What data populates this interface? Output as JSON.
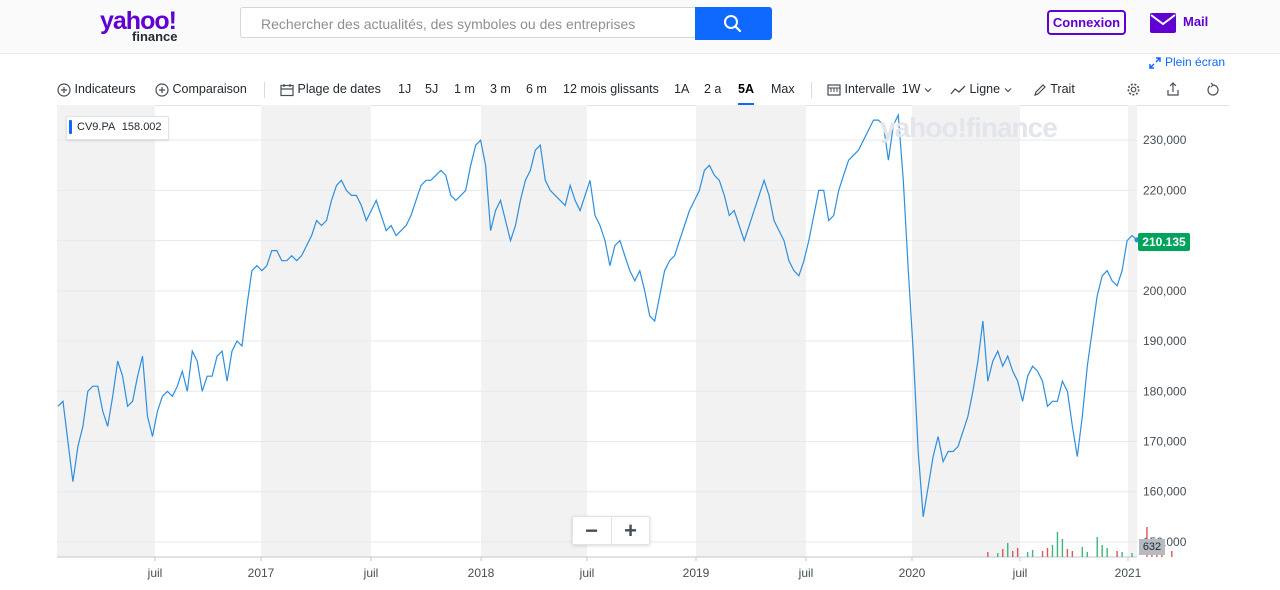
{
  "header": {
    "logo_text": "yahoo!",
    "logo_sub": "finance",
    "search_placeholder": "Rechercher des actualités, des symboles ou des entreprises",
    "connexion_label": "Connexion",
    "mail_label": "Mail"
  },
  "fullscreen_label": "Plein écran",
  "toolbar": {
    "indicateurs": "Indicateurs",
    "comparaison": "Comparaison",
    "plage": "Plage de dates",
    "ranges": [
      "1J",
      "5J",
      "1 m",
      "3 m",
      "6 m",
      "12 mois glissants",
      "1A",
      "2 a",
      "5A",
      "Max"
    ],
    "active_range": "5A",
    "intervalle": "Intervalle",
    "intervalle_value": "1W",
    "ligne": "Ligne",
    "trait": "Trait"
  },
  "legend": {
    "symbol": "CV9.PA",
    "value": "158.002"
  },
  "watermark": "yahoo!finance",
  "zoom": {
    "minus": "−",
    "plus": "+"
  },
  "price_tag": "210.135",
  "volume_tag": "632",
  "colors": {
    "line": "#2d8fdd",
    "accent": "#0f69ff",
    "brand": "#6001d2",
    "price_tag": "#00a35c",
    "band": "#f2f2f2"
  },
  "chart_data": {
    "type": "line",
    "series": [
      {
        "name": "CV9.PA",
        "values": [
          177,
          178,
          170,
          162,
          169,
          173,
          180,
          181,
          181,
          176,
          173,
          179,
          186,
          183,
          177,
          178,
          183,
          187,
          175,
          171,
          176,
          179,
          180,
          179,
          181,
          184,
          180,
          188,
          186,
          180,
          183,
          183,
          187,
          188,
          182,
          188,
          190,
          189,
          197,
          204,
          205,
          204,
          205,
          208,
          208,
          206,
          206,
          207,
          206,
          207,
          209,
          211,
          214,
          213,
          214,
          218,
          221,
          222,
          220,
          219,
          219,
          217,
          214,
          216,
          218,
          215,
          212,
          213,
          211,
          212,
          213,
          215,
          218,
          221,
          222,
          222,
          223,
          224,
          223,
          219,
          218,
          219,
          220,
          225,
          229,
          230,
          225,
          212,
          216,
          218,
          214,
          210,
          213,
          218,
          222,
          224,
          228,
          229,
          222,
          220,
          219,
          218,
          217,
          221,
          218,
          216,
          219,
          222,
          215,
          213,
          210,
          205,
          209,
          210,
          207,
          204,
          202,
          204,
          200,
          195,
          194,
          199,
          204,
          206,
          207,
          210,
          213,
          216,
          218,
          220,
          224,
          225,
          223,
          222,
          219,
          215,
          216,
          213,
          210,
          213,
          216,
          219,
          222,
          219,
          214,
          212,
          210,
          206,
          204,
          203,
          206,
          210,
          215,
          220,
          220,
          214,
          215,
          220,
          223,
          226,
          227,
          228,
          230,
          232,
          234,
          234,
          233,
          226,
          233,
          235,
          222,
          204,
          188,
          168,
          155,
          161,
          167,
          171,
          166,
          168,
          168,
          169,
          172,
          175,
          180,
          186,
          194,
          182,
          186,
          188,
          185,
          187,
          184,
          182,
          178,
          183,
          185,
          184,
          182,
          177,
          178,
          178,
          182,
          180,
          173,
          167,
          175,
          185,
          192,
          199,
          203,
          204,
          202,
          201,
          204,
          210,
          211,
          210.135
        ]
      }
    ],
    "x_tick_labels": [
      "juil",
      "2017",
      "juil",
      "2018",
      "juil",
      "2019",
      "juil",
      "2020",
      "juil",
      "2021"
    ],
    "y_tick_labels": [
      "150,000",
      "160,000",
      "170,000",
      "180,000",
      "190,000",
      "200,000",
      "210,000",
      "220,000",
      "230,000"
    ],
    "ylim": [
      147,
      237
    ],
    "grid": true,
    "volume": [
      {
        "i": 187,
        "v": 5
      },
      {
        "i": 189,
        "v": 4
      },
      {
        "i": 190,
        "v": 8
      },
      {
        "i": 191,
        "v": 14
      },
      {
        "i": 192,
        "v": 6
      },
      {
        "i": 193,
        "v": 9
      },
      {
        "i": 195,
        "v": 5
      },
      {
        "i": 196,
        "v": 7
      },
      {
        "i": 198,
        "v": 6
      },
      {
        "i": 199,
        "v": 9
      },
      {
        "i": 200,
        "v": 12
      },
      {
        "i": 201,
        "v": 25
      },
      {
        "i": 202,
        "v": 18
      },
      {
        "i": 203,
        "v": 8
      },
      {
        "i": 204,
        "v": 6
      },
      {
        "i": 206,
        "v": 10
      },
      {
        "i": 207,
        "v": 5
      },
      {
        "i": 209,
        "v": 20
      },
      {
        "i": 210,
        "v": 12
      },
      {
        "i": 211,
        "v": 9
      },
      {
        "i": 213,
        "v": 6
      },
      {
        "i": 214,
        "v": 5
      },
      {
        "i": 216,
        "v": 4
      },
      {
        "i": 219,
        "v": 30
      },
      {
        "i": 220,
        "v": 8
      },
      {
        "i": 221,
        "v": 5
      },
      {
        "i": 222,
        "v": 4
      },
      {
        "i": 224,
        "v": 6
      }
    ]
  }
}
